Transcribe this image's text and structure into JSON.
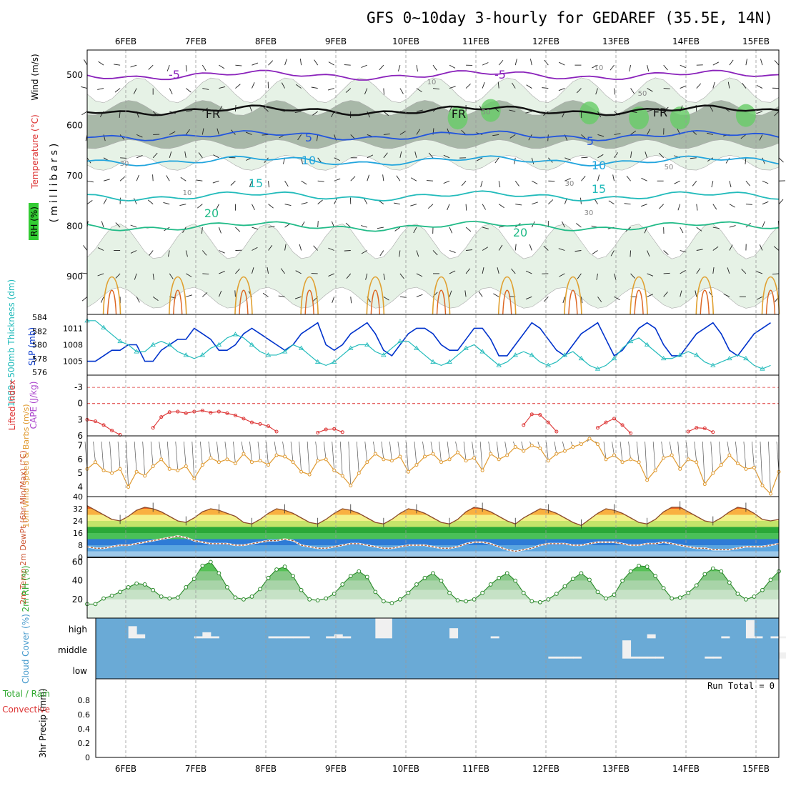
{
  "title": "GFS 0~10day 3-hourly for GEDAREF (35.5E, 14N)",
  "dates": [
    "6FEB",
    "7FEB",
    "8FEB",
    "9FEB",
    "10FEB",
    "11FEB",
    "12FEB",
    "13FEB",
    "14FEB",
    "15FEB"
  ],
  "colors": {
    "grid": "#999999",
    "rh_light": "#e6f2e6",
    "rh_mid": "#a8b8a8",
    "rh_dark": "#66cc66",
    "slp": "#0033cc",
    "thickness": "#22bbbb",
    "lifted": "#dd3333",
    "wind": "#e09a30",
    "cloud_bg": "#6aaad6"
  },
  "chart_data": [
    {
      "panel": "upper-air",
      "type": "contour",
      "ylabel": "(millibars)",
      "side_labels": [
        "Wind (m/s)",
        "Temperature (°C)",
        "RH (%)"
      ],
      "yticks": [
        "500",
        "600",
        "700",
        "800",
        "900"
      ],
      "ylim": [
        1000,
        450
      ],
      "isotherm_labels": [
        "-5",
        "-5",
        "FR",
        "FR",
        "FR",
        "5",
        "5",
        "10",
        "10",
        "15",
        "15",
        "20",
        "20"
      ],
      "rh_labels": [
        "10",
        "10",
        "10",
        "30",
        "30",
        "30",
        "50",
        "50",
        "50"
      ],
      "isotherms": [
        {
          "label": "-5",
          "level_mb": 500
        },
        {
          "label": "FR",
          "level_mb": 570
        },
        {
          "label": "5",
          "level_mb": 620
        },
        {
          "label": "10",
          "level_mb": 670
        },
        {
          "label": "15",
          "level_mb": 740
        },
        {
          "label": "20",
          "level_mb": 800
        }
      ]
    },
    {
      "panel": "slp-thickness",
      "type": "line",
      "ylabel_left": "1000~500mb Thickness (dm)",
      "ylabel_right": "SLP (mb)",
      "yticks_left": [
        "576",
        "578",
        "580",
        "582",
        "584"
      ],
      "yticks_right": [
        "1005",
        "1008",
        "1011"
      ],
      "series": [
        {
          "name": "SLP (mb)",
          "axis": "right",
          "ylim": [
            1003,
            1013
          ],
          "values": [
            1005,
            1005,
            1006,
            1007,
            1007,
            1008,
            1008,
            1005,
            1005,
            1007,
            1008,
            1009,
            1009,
            1011,
            1010,
            1009,
            1007,
            1007,
            1008,
            1010,
            1011,
            1010,
            1009,
            1008,
            1007,
            1008,
            1010,
            1011,
            1012,
            1008,
            1007,
            1008,
            1010,
            1011,
            1012,
            1010,
            1007,
            1006,
            1008,
            1010,
            1011,
            1011,
            1010,
            1008,
            1007,
            1007,
            1009,
            1011,
            1011,
            1009,
            1006,
            1006,
            1008,
            1010,
            1012,
            1011,
            1009,
            1007,
            1006,
            1008,
            1010,
            1011,
            1012,
            1009,
            1006,
            1007,
            1009,
            1011,
            1012,
            1011,
            1008,
            1006,
            1006,
            1008,
            1010,
            1011,
            1012,
            1010,
            1007,
            1006,
            1008,
            1010,
            1011,
            1012
          ]
        },
        {
          "name": "1000~500mb Thickness (dm)",
          "axis": "left",
          "ylim": [
            576,
            584
          ],
          "values": [
            583.5,
            583.5,
            582.5,
            581.5,
            580.5,
            580,
            579,
            579,
            580,
            580.5,
            580,
            579,
            578.5,
            578,
            578.5,
            579.5,
            580,
            581,
            581.5,
            581,
            580,
            579,
            578.5,
            578.5,
            579,
            580,
            579.5,
            578.5,
            577.5,
            577,
            577.5,
            578.5,
            579.5,
            580,
            580,
            579,
            578.5,
            579.5,
            580.5,
            580.5,
            579.5,
            578.5,
            577.5,
            577,
            577.5,
            578.5,
            579.5,
            580,
            579,
            578,
            577,
            577.5,
            578.5,
            579,
            578.5,
            577.5,
            577,
            577.5,
            578.5,
            579,
            578,
            577,
            576.5,
            577,
            578,
            579.5,
            580.5,
            581,
            580,
            579,
            578,
            578,
            578.5,
            579,
            578.5,
            577.5,
            577,
            577.5,
            578,
            578.5,
            578,
            577,
            576.5,
            577
          ]
        }
      ]
    },
    {
      "panel": "lifted-index",
      "type": "line",
      "ylabel": "Lifted Index",
      "ylabel2": "CAPE (J/kg)",
      "yticks": [
        "-3",
        "0",
        "3",
        "6"
      ],
      "ylim": [
        6,
        -5
      ],
      "series": [
        {
          "name": "Lifted Index",
          "segments": [
            {
              "start": 0,
              "values": [
                3,
                3.3,
                4,
                5,
                5.8
              ]
            },
            {
              "start": 8,
              "values": [
                4.5,
                2.5,
                1.6,
                1.5,
                1.8,
                1.5,
                1.3,
                1.7,
                1.5,
                1.8,
                2.2,
                2.8,
                3.5,
                3.8,
                4.2,
                5.2
              ]
            },
            {
              "start": 28,
              "values": [
                5.4,
                4.8,
                4.7,
                5.3
              ]
            },
            {
              "start": 53,
              "values": [
                4,
                2,
                2.1,
                3.5,
                5.2
              ]
            },
            {
              "start": 62,
              "values": [
                4.5,
                3.5,
                2.8,
                4,
                5.5
              ]
            },
            {
              "start": 73,
              "values": [
                5.2,
                4.5,
                4.6,
                5.3
              ]
            }
          ]
        }
      ]
    },
    {
      "panel": "10m-wind",
      "type": "line",
      "ylabel": "10m Wind Speed & Barbs (m/s)",
      "yticks": [
        "4",
        "5",
        "6",
        "7"
      ],
      "ylim": [
        3.3,
        7.7
      ],
      "series": [
        {
          "name": "10m Wind Speed",
          "values": [
            5.3,
            5.8,
            5.2,
            5.0,
            5.3,
            4.0,
            5.1,
            4.8,
            5.5,
            6.0,
            5.3,
            5.2,
            5.5,
            4.6,
            5.6,
            6.1,
            5.8,
            6.0,
            5.7,
            6.4,
            5.8,
            5.9,
            5.6,
            6.3,
            6.2,
            5.8,
            5.1,
            4.9,
            5.9,
            6.0,
            5.2,
            4.8,
            4.1,
            5.0,
            5.8,
            6.4,
            6.0,
            5.9,
            6.2,
            5.1,
            5.6,
            6.2,
            6.4,
            5.8,
            6.0,
            6.5,
            5.9,
            6.1,
            5.2,
            6.4,
            6.0,
            6.3,
            6.9,
            6.6,
            7.0,
            6.8,
            5.9,
            6.4,
            6.6,
            6.9,
            7.1,
            7.5,
            7.1,
            6.0,
            6.3,
            5.8,
            6.0,
            5.8,
            4.5,
            5.2,
            6.1,
            6.3,
            5.3,
            6.0,
            5.8,
            4.2,
            5.0,
            5.6,
            6.3,
            5.7,
            5.3,
            5.4,
            4.1,
            3.5,
            5.1
          ]
        }
      ]
    },
    {
      "panel": "2m-temp",
      "type": "area",
      "ylabel": "2m Temp 2m DewPt (6hr Min/Max) (°C)",
      "yticks": [
        "0",
        "8",
        "16",
        "24",
        "32",
        "40"
      ],
      "ylim": [
        0,
        40
      ],
      "series": [
        {
          "name": "2m Temp",
          "values": [
            34,
            31,
            28,
            25,
            24,
            27,
            31,
            33,
            32,
            30,
            27,
            24,
            23,
            26,
            30,
            32,
            31,
            29,
            27,
            23,
            22,
            25,
            29,
            32,
            31,
            29,
            26,
            23,
            22,
            25,
            29,
            32,
            31,
            29,
            26,
            23,
            22,
            25,
            29,
            32,
            31,
            29,
            26,
            23,
            22,
            25,
            30,
            33,
            32,
            30,
            27,
            24,
            22,
            26,
            29,
            32,
            31,
            29,
            26,
            23,
            21,
            25,
            29,
            32,
            31,
            29,
            26,
            23,
            22,
            25,
            30,
            33,
            33,
            30,
            27,
            24,
            23,
            26,
            30,
            33,
            32,
            29,
            25,
            24,
            25
          ]
        },
        {
          "name": "2m DewPt",
          "values": [
            7,
            6,
            6,
            7,
            8,
            8,
            9,
            10,
            11,
            12,
            13,
            14,
            13,
            11,
            10,
            9,
            9,
            9,
            8,
            8,
            9,
            10,
            11,
            11,
            12,
            11,
            8,
            7,
            6,
            6,
            7,
            8,
            9,
            9,
            8,
            7,
            6,
            6,
            7,
            8,
            8,
            8,
            7,
            6,
            6,
            7,
            9,
            10,
            10,
            9,
            7,
            5,
            4,
            5,
            6,
            8,
            9,
            9,
            9,
            8,
            8,
            9,
            10,
            10,
            10,
            9,
            8,
            8,
            9,
            9,
            10,
            9,
            8,
            7,
            6,
            6,
            5,
            5,
            5,
            6,
            7,
            7,
            7,
            8,
            9
          ]
        }
      ]
    },
    {
      "panel": "2m-rh",
      "type": "area",
      "ylabel": "2m RH (%)",
      "yticks": [
        "20",
        "40",
        "60"
      ],
      "ylim": [
        0,
        65
      ],
      "series": [
        {
          "name": "2m RH",
          "values": [
            15,
            15,
            21,
            24,
            28,
            33,
            37,
            36,
            30,
            23,
            21,
            22,
            33,
            42,
            56,
            60,
            48,
            33,
            22,
            20,
            23,
            31,
            43,
            52,
            55,
            45,
            30,
            20,
            19,
            21,
            26,
            36,
            45,
            50,
            44,
            28,
            18,
            16,
            20,
            27,
            36,
            43,
            48,
            40,
            27,
            19,
            18,
            20,
            27,
            36,
            43,
            48,
            40,
            27,
            18,
            17,
            20,
            26,
            34,
            42,
            48,
            41,
            28,
            21,
            25,
            40,
            50,
            56,
            55,
            45,
            32,
            21,
            22,
            27,
            35,
            47,
            53,
            50,
            38,
            26,
            20,
            23,
            30,
            41,
            50
          ]
        }
      ]
    },
    {
      "panel": "cloud-cover",
      "type": "heatmap",
      "ylabel": "Cloud Cover (%)",
      "rows": [
        "high",
        "middle",
        "low"
      ],
      "high_values": [
        0,
        0,
        0,
        0,
        0,
        60,
        20,
        0,
        0,
        0,
        0,
        0,
        0,
        10,
        30,
        10,
        0,
        0,
        0,
        0,
        0,
        0,
        10,
        10,
        10,
        10,
        10,
        0,
        0,
        10,
        20,
        10,
        0,
        0,
        0,
        100,
        100,
        0,
        0,
        0,
        0,
        0,
        0,
        0,
        50,
        0,
        0,
        0,
        0,
        10,
        0,
        0,
        0,
        0,
        0,
        0,
        0,
        0,
        0,
        0,
        0,
        0,
        0,
        0,
        0,
        0,
        0,
        0,
        20,
        0,
        0,
        0,
        0,
        0,
        0,
        0,
        0,
        10,
        0,
        0,
        90,
        10,
        0,
        10,
        10,
        10,
        10
      ],
      "middle_values": [
        0,
        0,
        0,
        0,
        0,
        0,
        0,
        0,
        0,
        0,
        0,
        0,
        0,
        0,
        0,
        0,
        0,
        0,
        0,
        0,
        0,
        0,
        0,
        0,
        0,
        0,
        0,
        0,
        0,
        0,
        0,
        0,
        0,
        0,
        0,
        0,
        0,
        0,
        0,
        0,
        0,
        0,
        0,
        0,
        0,
        0,
        0,
        0,
        0,
        0,
        0,
        0,
        0,
        0,
        0,
        0,
        10,
        10,
        10,
        10,
        0,
        0,
        0,
        0,
        0,
        90,
        10,
        10,
        10,
        10,
        0,
        0,
        0,
        0,
        0,
        10,
        10,
        0,
        0,
        0,
        0,
        0,
        0,
        0,
        30,
        10
      ]
    },
    {
      "panel": "precip",
      "type": "bar",
      "ylabel": "3hr Precip (mm)",
      "side_labels": [
        "Total / Rain",
        "Convective"
      ],
      "yticks": [
        "0",
        "0.2",
        "0.4",
        "0.6",
        "0.8"
      ],
      "ylim": [
        0,
        1
      ],
      "run_total": "Run Total = 0",
      "values": []
    }
  ]
}
